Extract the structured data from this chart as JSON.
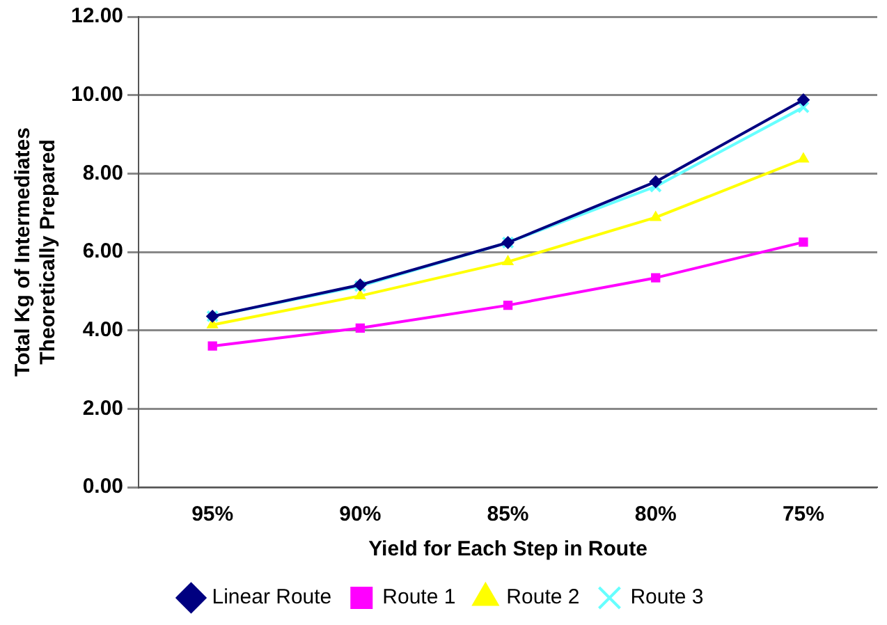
{
  "chart_data": {
    "type": "line",
    "xlabel": "Yield for Each Step in Route",
    "ylabel": "Total Kg of Intermediates Theoretically Prepared",
    "categories": [
      "95%",
      "90%",
      "85%",
      "80%",
      "75%"
    ],
    "series": [
      {
        "name": "Linear Route",
        "color": "#000080",
        "marker": "diamond",
        "values": [
          4.36,
          5.16,
          6.24,
          7.79,
          9.88
        ]
      },
      {
        "name": "Route 1",
        "color": "#ff00ff",
        "marker": "square",
        "values": [
          3.6,
          4.06,
          4.64,
          5.34,
          6.25
        ]
      },
      {
        "name": "Route 2",
        "color": "#ffff00",
        "marker": "triangle",
        "values": [
          4.14,
          4.88,
          5.75,
          6.88,
          8.37
        ]
      },
      {
        "name": "Route 3",
        "color": "#66ffff",
        "marker": "cross",
        "values": [
          4.36,
          5.13,
          6.24,
          7.67,
          9.69
        ]
      }
    ],
    "ylim": [
      0,
      12
    ],
    "yticks": [
      {
        "value": 0,
        "label": "0.00"
      },
      {
        "value": 2,
        "label": "2.00"
      },
      {
        "value": 4,
        "label": "4.00"
      },
      {
        "value": 6,
        "label": "6.00"
      },
      {
        "value": 8,
        "label": "8.00"
      },
      {
        "value": 10,
        "label": "10.00"
      },
      {
        "value": 12,
        "label": "12.00"
      }
    ],
    "grid": "y",
    "legend": "bottom",
    "line_style": "solid"
  }
}
